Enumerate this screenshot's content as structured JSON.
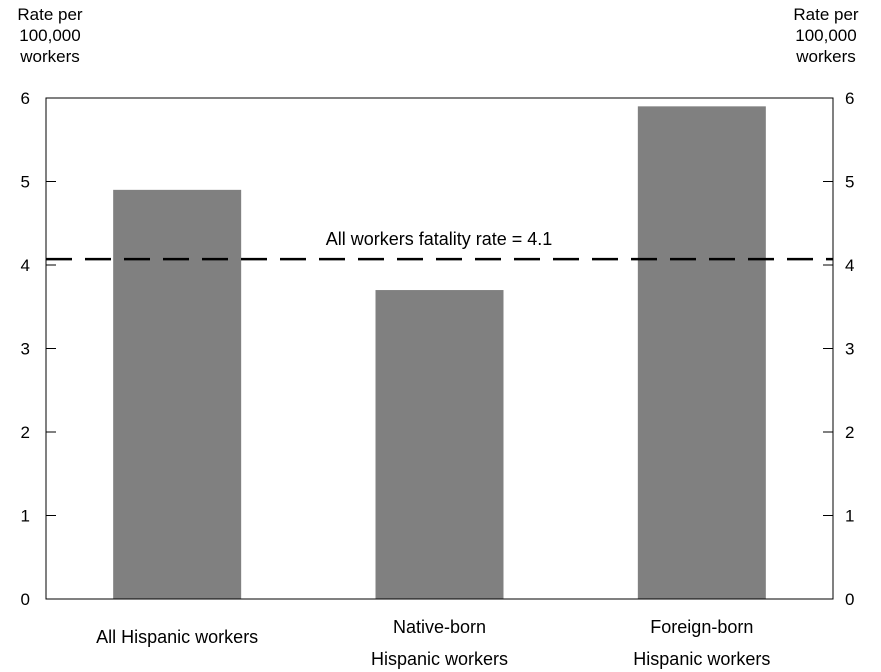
{
  "chart_data": {
    "type": "bar",
    "categories": [
      [
        "All Hispanic workers"
      ],
      [
        "Native-born",
        "Hispanic workers"
      ],
      [
        "Foreign-born",
        "Hispanic workers"
      ]
    ],
    "values": [
      4.9,
      3.7,
      5.9
    ],
    "ylabel_left": "Rate per\n100,000\nworkers",
    "ylabel_right": "Rate per\n100,000\nworkers",
    "ylim": [
      0,
      6
    ],
    "yticks": [
      "0",
      "1",
      "2",
      "3",
      "4",
      "5",
      "6"
    ],
    "reference_line": {
      "value": 4.07,
      "label": "All workers fatality rate = 4.1",
      "style": "dashed"
    },
    "bar_color": "#808080",
    "grid": false,
    "legend": "none"
  }
}
